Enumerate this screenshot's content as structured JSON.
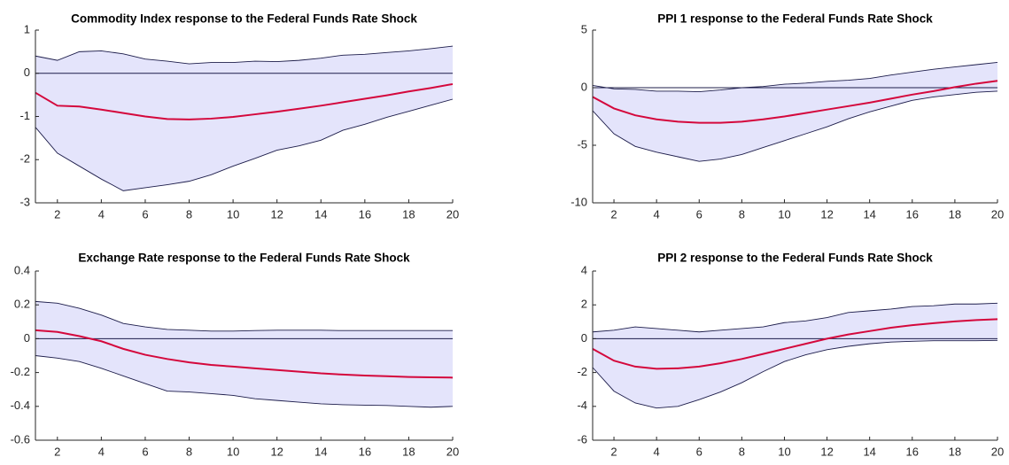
{
  "chart_data": [
    {
      "type": "line",
      "title": "Commodity Index response to the Federal Funds Rate Shock",
      "x": [
        1,
        2,
        3,
        4,
        5,
        6,
        7,
        8,
        9,
        10,
        11,
        12,
        13,
        14,
        15,
        16,
        17,
        18,
        19,
        20
      ],
      "xlim": [
        1,
        20
      ],
      "xticks": [
        2,
        4,
        6,
        8,
        10,
        12,
        14,
        16,
        18,
        20
      ],
      "ylim": [
        -3,
        1
      ],
      "yticks": [
        -3,
        -2,
        -1,
        0,
        1
      ],
      "hline": 0,
      "band": {
        "color": "#e4e4fb",
        "edge_color": "#1c1c4a",
        "upper": [
          0.4,
          0.3,
          0.5,
          0.52,
          0.45,
          0.33,
          0.28,
          0.22,
          0.25,
          0.25,
          0.28,
          0.27,
          0.3,
          0.35,
          0.42,
          0.44,
          0.48,
          0.52,
          0.57,
          0.63
        ],
        "lower": [
          -1.25,
          -1.85,
          -2.15,
          -2.45,
          -2.72,
          -2.65,
          -2.58,
          -2.5,
          -2.35,
          -2.15,
          -1.97,
          -1.78,
          -1.68,
          -1.55,
          -1.32,
          -1.18,
          -1.02,
          -0.88,
          -0.74,
          -0.6
        ]
      },
      "series": [
        {
          "color": "#d4083c",
          "values": [
            -0.45,
            -0.75,
            -0.77,
            -0.84,
            -0.92,
            -1.0,
            -1.06,
            -1.07,
            -1.05,
            -1.01,
            -0.95,
            -0.89,
            -0.82,
            -0.75,
            -0.67,
            -0.59,
            -0.51,
            -0.42,
            -0.34,
            -0.25
          ]
        }
      ]
    },
    {
      "type": "line",
      "title": "PPI 1 response to the Federal Funds Rate Shock",
      "x": [
        1,
        2,
        3,
        4,
        5,
        6,
        7,
        8,
        9,
        10,
        11,
        12,
        13,
        14,
        15,
        16,
        17,
        18,
        19,
        20
      ],
      "xlim": [
        1,
        20
      ],
      "xticks": [
        2,
        4,
        6,
        8,
        10,
        12,
        14,
        16,
        18,
        20
      ],
      "ylim": [
        -10,
        5
      ],
      "yticks": [
        -10,
        -5,
        0,
        5
      ],
      "hline": 0,
      "band": {
        "color": "#e4e4fb",
        "edge_color": "#1c1c4a",
        "upper": [
          0.2,
          -0.1,
          -0.15,
          -0.3,
          -0.3,
          -0.35,
          -0.2,
          0,
          0.1,
          0.3,
          0.4,
          0.55,
          0.65,
          0.8,
          1.1,
          1.35,
          1.6,
          1.8,
          2.0,
          2.2
        ],
        "lower": [
          -2.0,
          -4.0,
          -5.1,
          -5.6,
          -6.0,
          -6.4,
          -6.2,
          -5.8,
          -5.2,
          -4.6,
          -4.0,
          -3.4,
          -2.7,
          -2.1,
          -1.6,
          -1.1,
          -0.8,
          -0.6,
          -0.4,
          -0.3
        ]
      },
      "series": [
        {
          "color": "#d4083c",
          "values": [
            -0.8,
            -1.8,
            -2.4,
            -2.75,
            -2.95,
            -3.05,
            -3.05,
            -2.95,
            -2.75,
            -2.5,
            -2.2,
            -1.9,
            -1.6,
            -1.3,
            -0.95,
            -0.6,
            -0.3,
            0.05,
            0.35,
            0.6
          ]
        }
      ]
    },
    {
      "type": "line",
      "title": "Exchange Rate response to the Federal Funds Rate Shock",
      "x": [
        1,
        2,
        3,
        4,
        5,
        6,
        7,
        8,
        9,
        10,
        11,
        12,
        13,
        14,
        15,
        16,
        17,
        18,
        19,
        20
      ],
      "xlim": [
        1,
        20
      ],
      "xticks": [
        2,
        4,
        6,
        8,
        10,
        12,
        14,
        16,
        18,
        20
      ],
      "ylim": [
        -0.6,
        0.4
      ],
      "yticks": [
        -0.6,
        -0.4,
        -0.2,
        0,
        0.2,
        0.4
      ],
      "hline": 0,
      "band": {
        "color": "#e4e4fb",
        "edge_color": "#1c1c4a",
        "upper": [
          0.22,
          0.21,
          0.18,
          0.14,
          0.09,
          0.07,
          0.055,
          0.05,
          0.045,
          0.045,
          0.048,
          0.05,
          0.05,
          0.05,
          0.048,
          0.048,
          0.048,
          0.048,
          0.048,
          0.048
        ],
        "lower": [
          -0.1,
          -0.115,
          -0.135,
          -0.175,
          -0.22,
          -0.265,
          -0.31,
          -0.315,
          -0.325,
          -0.335,
          -0.355,
          -0.365,
          -0.375,
          -0.385,
          -0.39,
          -0.393,
          -0.395,
          -0.4,
          -0.405,
          -0.4
        ]
      },
      "series": [
        {
          "color": "#d4083c",
          "values": [
            0.05,
            0.04,
            0.015,
            -0.015,
            -0.06,
            -0.095,
            -0.12,
            -0.14,
            -0.155,
            -0.165,
            -0.175,
            -0.185,
            -0.195,
            -0.205,
            -0.212,
            -0.218,
            -0.222,
            -0.226,
            -0.228,
            -0.23
          ]
        }
      ]
    },
    {
      "type": "line",
      "title": "PPI 2 response to the Federal Funds Rate Shock",
      "x": [
        1,
        2,
        3,
        4,
        5,
        6,
        7,
        8,
        9,
        10,
        11,
        12,
        13,
        14,
        15,
        16,
        17,
        18,
        19,
        20
      ],
      "xlim": [
        1,
        20
      ],
      "xticks": [
        2,
        4,
        6,
        8,
        10,
        12,
        14,
        16,
        18,
        20
      ],
      "ylim": [
        -6,
        4
      ],
      "yticks": [
        -6,
        -4,
        -2,
        0,
        2,
        4
      ],
      "hline": 0,
      "band": {
        "color": "#e4e4fb",
        "edge_color": "#1c1c4a",
        "upper": [
          0.4,
          0.5,
          0.7,
          0.6,
          0.5,
          0.4,
          0.5,
          0.6,
          0.7,
          0.95,
          1.05,
          1.25,
          1.55,
          1.65,
          1.75,
          1.9,
          1.95,
          2.05,
          2.05,
          2.1
        ],
        "lower": [
          -1.7,
          -3.1,
          -3.8,
          -4.1,
          -4.0,
          -3.6,
          -3.15,
          -2.6,
          -1.95,
          -1.35,
          -0.95,
          -0.65,
          -0.45,
          -0.3,
          -0.2,
          -0.15,
          -0.12,
          -0.12,
          -0.12,
          -0.1
        ]
      },
      "series": [
        {
          "color": "#d4083c",
          "values": [
            -0.6,
            -1.3,
            -1.65,
            -1.78,
            -1.75,
            -1.65,
            -1.45,
            -1.2,
            -0.9,
            -0.6,
            -0.3,
            0.0,
            0.25,
            0.45,
            0.65,
            0.8,
            0.92,
            1.02,
            1.1,
            1.15
          ]
        }
      ]
    }
  ]
}
